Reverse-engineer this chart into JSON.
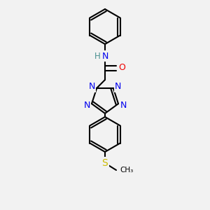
{
  "bg_color": "#f2f2f2",
  "bond_color": "#000000",
  "bond_width": 1.5,
  "atom_colors": {
    "N": "#0000ee",
    "O": "#ee0000",
    "S": "#ccbb00",
    "C": "#000000",
    "H": "#4a9090"
  },
  "font_size": 9,
  "font_size_large": 10
}
